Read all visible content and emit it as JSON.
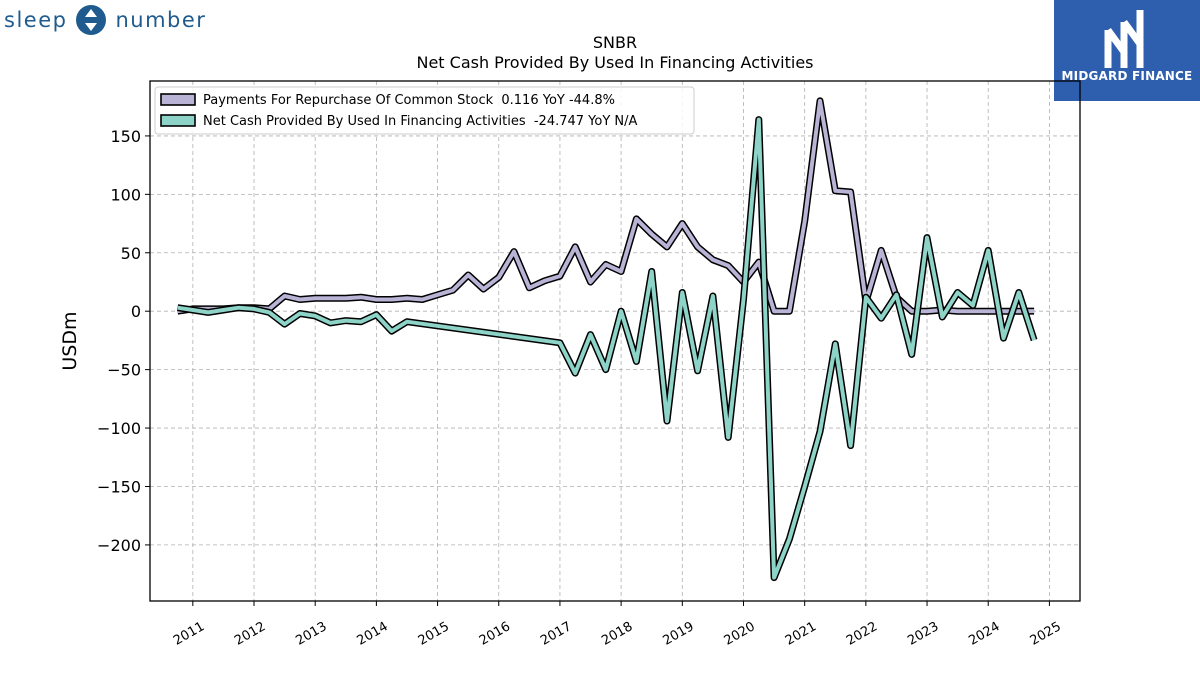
{
  "brand": {
    "left_text": "sleep",
    "right_text": "number"
  },
  "badge": {
    "name": "MIDGARD FINANCE"
  },
  "chart_data": {
    "type": "line",
    "title": "SNBR",
    "subtitle": "Net Cash Provided By Used In Financing Activities",
    "ylabel": "USDm",
    "xlabel": "",
    "ylim": [
      -248,
      197
    ],
    "xlim": [
      2010.3,
      2025.5
    ],
    "x_ticks": [
      2011,
      2012,
      2013,
      2014,
      2015,
      2016,
      2017,
      2018,
      2019,
      2020,
      2021,
      2022,
      2023,
      2024,
      2025
    ],
    "y_ticks": [
      150,
      100,
      50,
      0,
      -50,
      -100,
      -150,
      -200
    ],
    "y_tick_labels": [
      "150",
      "100",
      "50",
      "0",
      "−50",
      "−100",
      "−150",
      "−200"
    ],
    "grid": true,
    "legend_position": "top-left",
    "series": [
      {
        "name": "Payments For Repurchase Of Common Stock",
        "legend_label": "Payments For Repurchase Of Common Stock  0.116 YoY -44.8%",
        "color": "#b9b3d6",
        "points": [
          [
            2010.75,
            0
          ],
          [
            2011.0,
            2
          ],
          [
            2011.25,
            2
          ],
          [
            2011.5,
            2
          ],
          [
            2011.75,
            3
          ],
          [
            2012.0,
            3
          ],
          [
            2012.25,
            2
          ],
          [
            2012.5,
            13
          ],
          [
            2012.75,
            10
          ],
          [
            2013.0,
            11
          ],
          [
            2013.25,
            11
          ],
          [
            2013.5,
            11
          ],
          [
            2013.75,
            12
          ],
          [
            2014.0,
            10
          ],
          [
            2014.25,
            10
          ],
          [
            2014.5,
            11
          ],
          [
            2014.75,
            10
          ],
          [
            2015.0,
            14
          ],
          [
            2015.25,
            18
          ],
          [
            2015.5,
            31
          ],
          [
            2015.75,
            19
          ],
          [
            2016.0,
            29
          ],
          [
            2016.25,
            51
          ],
          [
            2016.5,
            20
          ],
          [
            2016.75,
            26
          ],
          [
            2017.0,
            30
          ],
          [
            2017.25,
            55
          ],
          [
            2017.5,
            25
          ],
          [
            2017.75,
            40
          ],
          [
            2018.0,
            34
          ],
          [
            2018.25,
            79
          ],
          [
            2018.5,
            66
          ],
          [
            2018.75,
            55
          ],
          [
            2019.0,
            75
          ],
          [
            2019.25,
            55
          ],
          [
            2019.5,
            44
          ],
          [
            2019.75,
            39
          ],
          [
            2020.0,
            25
          ],
          [
            2020.25,
            42
          ],
          [
            2020.5,
            0
          ],
          [
            2020.75,
            0
          ],
          [
            2021.0,
            77
          ],
          [
            2021.25,
            180
          ],
          [
            2021.5,
            103
          ],
          [
            2021.75,
            102
          ],
          [
            2022.0,
            8
          ],
          [
            2022.25,
            52
          ],
          [
            2022.5,
            12
          ],
          [
            2022.75,
            0
          ],
          [
            2023.0,
            0
          ],
          [
            2023.25,
            1
          ],
          [
            2023.5,
            0
          ],
          [
            2023.75,
            0
          ],
          [
            2024.0,
            0
          ],
          [
            2024.25,
            0
          ],
          [
            2024.5,
            0
          ],
          [
            2024.75,
            0.116
          ]
        ]
      },
      {
        "name": "Net Cash Provided By Used In Financing Activities",
        "legend_label": "Net Cash Provided By Used In Financing Activities  -24.747 YoY N/A",
        "color": "#8dd3c7",
        "points": [
          [
            2010.75,
            3
          ],
          [
            2011.0,
            1
          ],
          [
            2011.25,
            -1
          ],
          [
            2011.5,
            1
          ],
          [
            2011.75,
            3
          ],
          [
            2012.0,
            2
          ],
          [
            2012.25,
            -1
          ],
          [
            2012.5,
            -11
          ],
          [
            2012.75,
            -2
          ],
          [
            2013.0,
            -4
          ],
          [
            2013.25,
            -10
          ],
          [
            2013.5,
            -8
          ],
          [
            2013.75,
            -9
          ],
          [
            2014.0,
            -3
          ],
          [
            2014.25,
            -17
          ],
          [
            2014.5,
            -9
          ],
          [
            2017.0,
            -27
          ],
          [
            2017.25,
            -53
          ],
          [
            2017.5,
            -20
          ],
          [
            2017.75,
            -50
          ],
          [
            2018.0,
            0
          ],
          [
            2018.25,
            -43
          ],
          [
            2018.5,
            34
          ],
          [
            2018.75,
            -94
          ],
          [
            2019.0,
            16
          ],
          [
            2019.25,
            -51
          ],
          [
            2019.5,
            13
          ],
          [
            2019.75,
            -108
          ],
          [
            2020.0,
            10
          ],
          [
            2020.25,
            164
          ],
          [
            2020.5,
            -228
          ],
          [
            2020.75,
            -195
          ],
          [
            2021.0,
            -150
          ],
          [
            2021.25,
            -103
          ],
          [
            2021.5,
            -28
          ],
          [
            2021.75,
            -115
          ],
          [
            2022.0,
            12
          ],
          [
            2022.25,
            -6
          ],
          [
            2022.5,
            14
          ],
          [
            2022.75,
            -37
          ],
          [
            2023.0,
            63
          ],
          [
            2023.25,
            -5
          ],
          [
            2023.5,
            16
          ],
          [
            2023.75,
            5
          ],
          [
            2024.0,
            52
          ],
          [
            2024.25,
            -23
          ],
          [
            2024.5,
            16
          ],
          [
            2024.75,
            -24.747
          ]
        ]
      }
    ]
  }
}
